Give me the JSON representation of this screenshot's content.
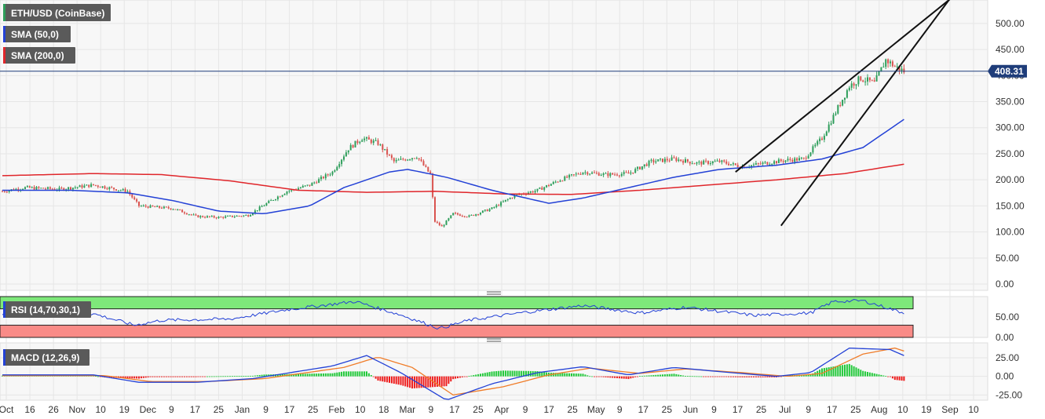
{
  "colors": {
    "up": "#2e9e5b",
    "down": "#d9534f",
    "sma50": "#2341d6",
    "sma200": "#e0262b",
    "grid": "#e6e6e6",
    "panel_bg": "#f7f7f7",
    "rsi_overbought": "#7ee87a",
    "rsi_oversold": "#f98b87",
    "macd_signal": "#f07c28",
    "price_line": "#1f3d7a"
  },
  "legend": {
    "symbol": "ETH/USD (CoinBase)",
    "sma_fast": "SMA (50,0)",
    "sma_slow": "SMA (200,0)"
  },
  "rsi_panel": {
    "label": "RSI (14,70,30,1)"
  },
  "macd_panel": {
    "label": "MACD (12,26,9)"
  },
  "chart_data": {
    "type": "candlestick",
    "last_price": 408.31,
    "last_price_label": "408.31",
    "price_axis_ticks": [
      "0.00",
      "50.00",
      "100.00",
      "150.00",
      "200.00",
      "250.00",
      "300.00",
      "350.00",
      "400.00",
      "450.00",
      "500.00"
    ],
    "price_ylim": [
      -12,
      545
    ],
    "time_axis_labels": [
      "Oct",
      "16",
      "26",
      "Nov",
      "10",
      "19",
      "Dec",
      "9",
      "17",
      "25",
      "Jan",
      "9",
      "17",
      "25",
      "Feb",
      "10",
      "18",
      "Mar",
      "9",
      "17",
      "25",
      "Apr",
      "9",
      "17",
      "25",
      "May",
      "9",
      "17",
      "25",
      "Jun",
      "9",
      "17",
      "25",
      "Jul",
      "9",
      "17",
      "25",
      "Aug",
      "10",
      "19",
      "Sep",
      "10"
    ],
    "price_anchors": [
      {
        "d": 0,
        "v": 178
      },
      {
        "d": 10,
        "v": 185
      },
      {
        "d": 25,
        "v": 182
      },
      {
        "d": 40,
        "v": 190
      },
      {
        "d": 55,
        "v": 178
      },
      {
        "d": 60,
        "v": 150
      },
      {
        "d": 75,
        "v": 145
      },
      {
        "d": 85,
        "v": 130
      },
      {
        "d": 95,
        "v": 128
      },
      {
        "d": 108,
        "v": 132
      },
      {
        "d": 118,
        "v": 160
      },
      {
        "d": 125,
        "v": 178
      },
      {
        "d": 135,
        "v": 190
      },
      {
        "d": 145,
        "v": 215
      },
      {
        "d": 152,
        "v": 260
      },
      {
        "d": 158,
        "v": 280
      },
      {
        "d": 165,
        "v": 270
      },
      {
        "d": 172,
        "v": 235
      },
      {
        "d": 182,
        "v": 245
      },
      {
        "d": 188,
        "v": 210
      },
      {
        "d": 190,
        "v": 120
      },
      {
        "d": 193,
        "v": 110
      },
      {
        "d": 198,
        "v": 135
      },
      {
        "d": 205,
        "v": 130
      },
      {
        "d": 215,
        "v": 145
      },
      {
        "d": 225,
        "v": 170
      },
      {
        "d": 235,
        "v": 180
      },
      {
        "d": 245,
        "v": 200
      },
      {
        "d": 255,
        "v": 215
      },
      {
        "d": 265,
        "v": 210
      },
      {
        "d": 275,
        "v": 212
      },
      {
        "d": 285,
        "v": 235
      },
      {
        "d": 295,
        "v": 240
      },
      {
        "d": 305,
        "v": 232
      },
      {
        "d": 315,
        "v": 235
      },
      {
        "d": 325,
        "v": 225
      },
      {
        "d": 335,
        "v": 232
      },
      {
        "d": 345,
        "v": 238
      },
      {
        "d": 352,
        "v": 240
      },
      {
        "d": 360,
        "v": 280
      },
      {
        "d": 366,
        "v": 330
      },
      {
        "d": 372,
        "v": 380
      },
      {
        "d": 377,
        "v": 395
      },
      {
        "d": 383,
        "v": 385
      },
      {
        "d": 388,
        "v": 430
      },
      {
        "d": 392,
        "v": 418
      },
      {
        "d": 396,
        "v": 408
      }
    ],
    "sma50_anchors": [
      {
        "d": 0,
        "v": 180
      },
      {
        "d": 30,
        "v": 180
      },
      {
        "d": 55,
        "v": 175
      },
      {
        "d": 75,
        "v": 160
      },
      {
        "d": 95,
        "v": 140
      },
      {
        "d": 115,
        "v": 135
      },
      {
        "d": 135,
        "v": 150
      },
      {
        "d": 150,
        "v": 185
      },
      {
        "d": 170,
        "v": 215
      },
      {
        "d": 178,
        "v": 220
      },
      {
        "d": 195,
        "v": 205
      },
      {
        "d": 215,
        "v": 180
      },
      {
        "d": 240,
        "v": 155
      },
      {
        "d": 255,
        "v": 165
      },
      {
        "d": 275,
        "v": 185
      },
      {
        "d": 295,
        "v": 205
      },
      {
        "d": 315,
        "v": 220
      },
      {
        "d": 340,
        "v": 228
      },
      {
        "d": 360,
        "v": 240
      },
      {
        "d": 378,
        "v": 262
      },
      {
        "d": 396,
        "v": 316
      }
    ],
    "sma200_anchors": [
      {
        "d": 0,
        "v": 208
      },
      {
        "d": 40,
        "v": 212
      },
      {
        "d": 70,
        "v": 210
      },
      {
        "d": 100,
        "v": 198
      },
      {
        "d": 130,
        "v": 180
      },
      {
        "d": 160,
        "v": 176
      },
      {
        "d": 190,
        "v": 178
      },
      {
        "d": 220,
        "v": 173
      },
      {
        "d": 250,
        "v": 172
      },
      {
        "d": 280,
        "v": 180
      },
      {
        "d": 310,
        "v": 190
      },
      {
        "d": 340,
        "v": 200
      },
      {
        "d": 370,
        "v": 212
      },
      {
        "d": 396,
        "v": 230
      }
    ],
    "rsi": {
      "ylim": [
        0,
        100
      ],
      "ticks": [
        "0.00",
        "50.00"
      ],
      "anchors": [
        {
          "d": 0,
          "v": 55
        },
        {
          "d": 40,
          "v": 58
        },
        {
          "d": 58,
          "v": 30
        },
        {
          "d": 70,
          "v": 42
        },
        {
          "d": 100,
          "v": 45
        },
        {
          "d": 125,
          "v": 68
        },
        {
          "d": 155,
          "v": 88
        },
        {
          "d": 175,
          "v": 55
        },
        {
          "d": 192,
          "v": 22
        },
        {
          "d": 205,
          "v": 42
        },
        {
          "d": 230,
          "v": 62
        },
        {
          "d": 255,
          "v": 78
        },
        {
          "d": 280,
          "v": 60
        },
        {
          "d": 300,
          "v": 74
        },
        {
          "d": 330,
          "v": 54
        },
        {
          "d": 355,
          "v": 60
        },
        {
          "d": 365,
          "v": 88
        },
        {
          "d": 378,
          "v": 90
        },
        {
          "d": 396,
          "v": 60
        }
      ]
    },
    "macd": {
      "ylim": [
        -32,
        45
      ],
      "ticks": [
        "-25.00",
        "0.00",
        "25.00"
      ],
      "macd_anchors": [
        {
          "d": 0,
          "v": 2
        },
        {
          "d": 40,
          "v": 2
        },
        {
          "d": 60,
          "v": -8
        },
        {
          "d": 85,
          "v": -8
        },
        {
          "d": 110,
          "v": -3
        },
        {
          "d": 145,
          "v": 14
        },
        {
          "d": 160,
          "v": 28
        },
        {
          "d": 175,
          "v": 5
        },
        {
          "d": 195,
          "v": -32
        },
        {
          "d": 215,
          "v": -10
        },
        {
          "d": 235,
          "v": 5
        },
        {
          "d": 255,
          "v": 13
        },
        {
          "d": 275,
          "v": 2
        },
        {
          "d": 295,
          "v": 12
        },
        {
          "d": 320,
          "v": 5
        },
        {
          "d": 340,
          "v": 0
        },
        {
          "d": 355,
          "v": 5
        },
        {
          "d": 372,
          "v": 38
        },
        {
          "d": 390,
          "v": 36
        },
        {
          "d": 396,
          "v": 28
        }
      ],
      "signal_anchors": [
        {
          "d": 0,
          "v": 1
        },
        {
          "d": 45,
          "v": 1
        },
        {
          "d": 65,
          "v": -7
        },
        {
          "d": 90,
          "v": -7
        },
        {
          "d": 115,
          "v": -3
        },
        {
          "d": 150,
          "v": 12
        },
        {
          "d": 165,
          "v": 26
        },
        {
          "d": 180,
          "v": 12
        },
        {
          "d": 198,
          "v": -25
        },
        {
          "d": 220,
          "v": -14
        },
        {
          "d": 240,
          "v": 2
        },
        {
          "d": 258,
          "v": 11
        },
        {
          "d": 280,
          "v": 4
        },
        {
          "d": 300,
          "v": 10
        },
        {
          "d": 325,
          "v": 5
        },
        {
          "d": 345,
          "v": 0
        },
        {
          "d": 360,
          "v": 4
        },
        {
          "d": 378,
          "v": 30
        },
        {
          "d": 392,
          "v": 38
        },
        {
          "d": 396,
          "v": 34
        }
      ]
    },
    "trend_lines": [
      {
        "d1": 322,
        "v1": 215,
        "d2": 420,
        "v2": 560
      },
      {
        "d1": 342,
        "v1": 112,
        "d2": 420,
        "v2": 570
      }
    ]
  }
}
